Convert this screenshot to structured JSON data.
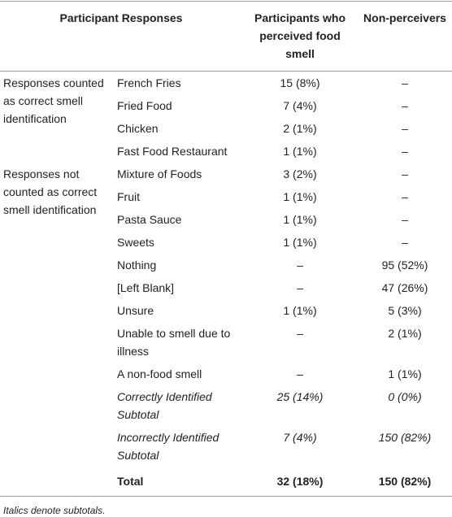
{
  "table": {
    "header": [
      "Participant Responses",
      "Participants who perceived food smell",
      "Non-perceivers"
    ],
    "rows": [
      {
        "group": "Responses counted as correct smell identification",
        "cells": [
          "French Fries",
          "15 (8%)",
          "–"
        ]
      },
      {
        "cells": [
          "Fried Food",
          "7 (4%)",
          "–"
        ]
      },
      {
        "cells": [
          "Chicken",
          "2 (1%)",
          "–"
        ]
      },
      {
        "cells": [
          "Fast Food Restaurant",
          "1 (1%)",
          "–"
        ]
      },
      {
        "group": "Responses not counted as correct smell identification",
        "cells": [
          "Mixture of Foods",
          "3 (2%)",
          "–"
        ]
      },
      {
        "cells": [
          "Fruit",
          "1 (1%)",
          "–"
        ]
      },
      {
        "cells": [
          "Pasta Sauce",
          "1 (1%)",
          "–"
        ]
      },
      {
        "cells": [
          "Sweets",
          "1 (1%)",
          "–"
        ]
      },
      {
        "cells": [
          "Nothing",
          "–",
          "95 (52%)"
        ]
      },
      {
        "cells": [
          "[Left Blank]",
          "–",
          "47 (26%)"
        ]
      },
      {
        "cells": [
          "Unsure",
          "1 (1%)",
          "5 (3%)"
        ]
      },
      {
        "cells": [
          "Unable to smell due to illness",
          "–",
          "2 (1%)"
        ]
      },
      {
        "cells": [
          "A non-food smell",
          "–",
          "1 (1%)"
        ]
      },
      {
        "cells": [
          "Correctly Identified Subtotal",
          "25 (14%)",
          "0 (0%)"
        ],
        "italic": true
      },
      {
        "cells": [
          "Incorrectly Identified Subtotal",
          "7 (4%)",
          "150 (82%)"
        ],
        "italic": true
      },
      {
        "cells": [
          "Total",
          "32 (18%)",
          "150 (82%)"
        ],
        "bold": true
      }
    ],
    "footnote": "Italics denote subtotals."
  }
}
